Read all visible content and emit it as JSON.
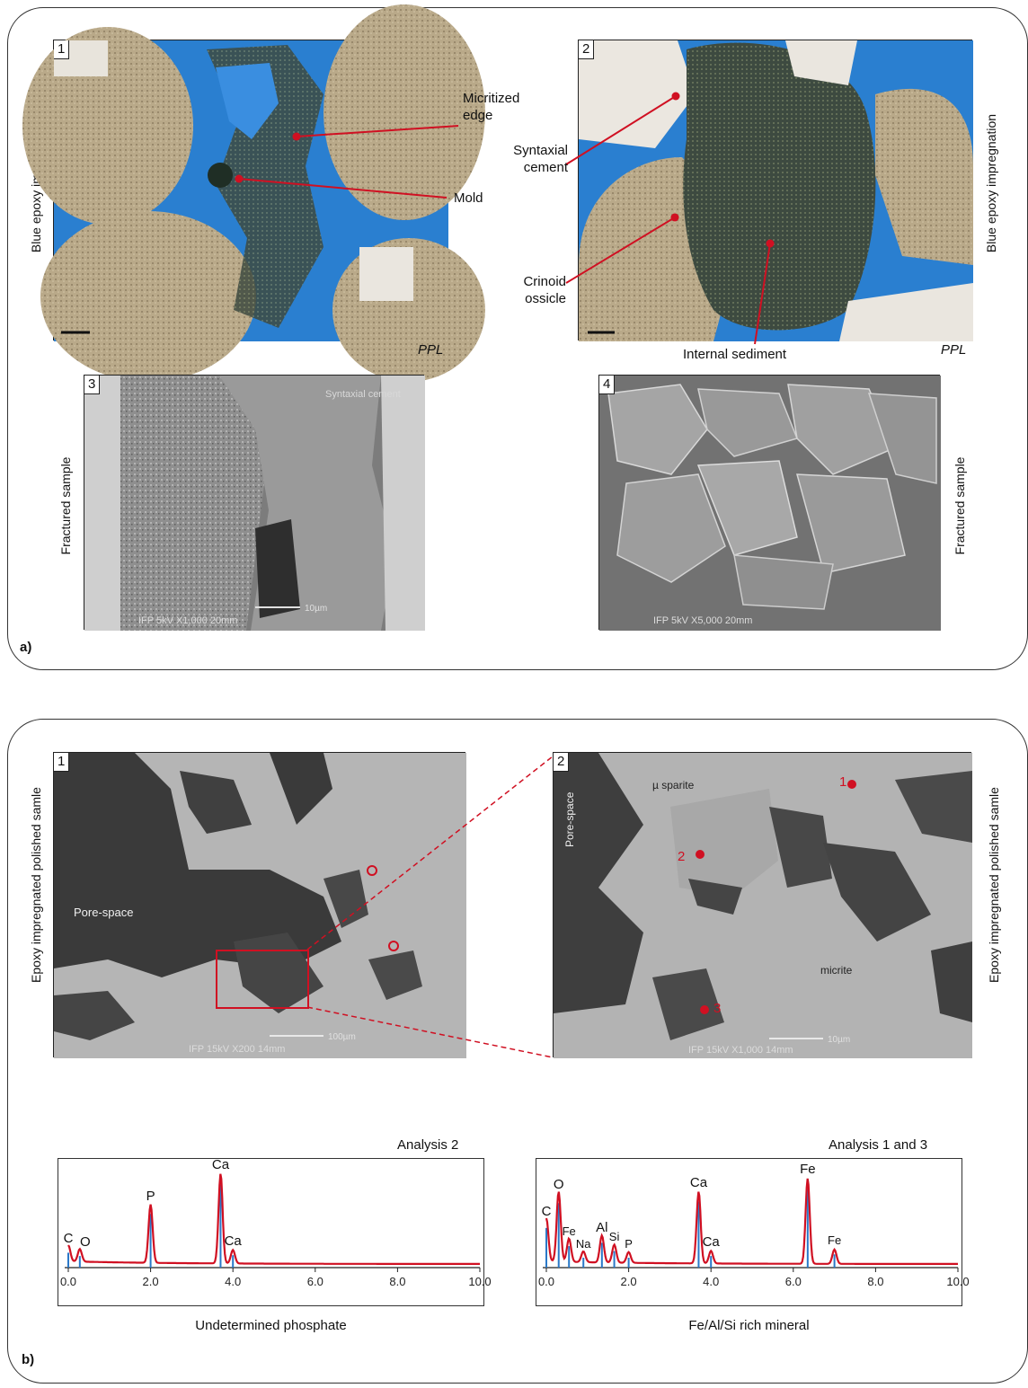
{
  "panel_a": {
    "letter": "a)",
    "images": [
      {
        "number": "1",
        "side_label": "Blue epoxy impregnation",
        "corner_label": "PPL",
        "callouts": [
          "Micritized edge",
          "Mold"
        ]
      },
      {
        "number": "2",
        "side_label": "Blue epoxy impregnation",
        "corner_label": "PPL",
        "callouts": [
          "Syntaxial cement",
          "Crinoid ossicle",
          "Internal sediment"
        ]
      },
      {
        "number": "3",
        "side_label": "Fractured sample",
        "sem_text": {
          "label": "Syntaxial cement",
          "bar": "10µm",
          "footer": "IFP   5kV   X1,000  20mm"
        }
      },
      {
        "number": "4",
        "side_label": "Fractured sample",
        "sem_text": {
          "footer": "IFP   5kV   X5,000  20mm"
        }
      }
    ]
  },
  "panel_b": {
    "letter": "b)",
    "images": [
      {
        "number": "1",
        "side_label": "Epoxy impregnated polished samle",
        "labels": [
          "Pore-space"
        ],
        "sem_text": {
          "bar": "100µm",
          "footer": "IFP   15kV   X200  14mm"
        }
      },
      {
        "number": "2",
        "side_label": "Epoxy impregnated polished samle",
        "labels": [
          "µ sparite",
          "Pore-space",
          "micrite"
        ],
        "points": [
          "1",
          "2",
          "3"
        ],
        "sem_text": {
          "bar": "10µm",
          "footer": "IFP   15kV   X1,000  14mm"
        }
      }
    ]
  },
  "chart_data": [
    {
      "type": "line",
      "title": "Analysis 2",
      "caption": "Undetermined phosphate",
      "xlim": [
        0,
        10
      ],
      "xticks": [
        "0.0",
        "2.0",
        "4.0",
        "6.0",
        "8.0",
        "10.0"
      ],
      "peaks": [
        {
          "label": "C",
          "x": 0.0,
          "height": 0.18
        },
        {
          "label": "O",
          "x": 0.28,
          "height": 0.14
        },
        {
          "label": "P",
          "x": 2.0,
          "height": 0.65
        },
        {
          "label": "Ca",
          "x": 3.7,
          "height": 1.0
        },
        {
          "label": "Ca",
          "x": 4.0,
          "height": 0.15
        }
      ]
    },
    {
      "type": "line",
      "title": "Analysis 1 and 3",
      "caption": "Fe/Al/Si rich mineral",
      "xlim": [
        0,
        10
      ],
      "xticks": [
        "0.0",
        "2.0",
        "4.0",
        "6.0",
        "8.0",
        "10.0"
      ],
      "peaks": [
        {
          "label": "C",
          "x": 0.0,
          "height": 0.48
        },
        {
          "label": "O",
          "x": 0.3,
          "height": 0.78
        },
        {
          "label": "Fe",
          "x": 0.55,
          "height": 0.26
        },
        {
          "label": "Na",
          "x": 0.9,
          "height": 0.12
        },
        {
          "label": "Al",
          "x": 1.35,
          "height": 0.3
        },
        {
          "label": "Si",
          "x": 1.65,
          "height": 0.2
        },
        {
          "label": "P",
          "x": 2.0,
          "height": 0.12
        },
        {
          "label": "Ca",
          "x": 3.7,
          "height": 0.8
        },
        {
          "label": "Ca",
          "x": 4.0,
          "height": 0.14
        },
        {
          "label": "Fe",
          "x": 6.35,
          "height": 0.95
        },
        {
          "label": "Fe",
          "x": 7.0,
          "height": 0.16
        }
      ]
    }
  ]
}
